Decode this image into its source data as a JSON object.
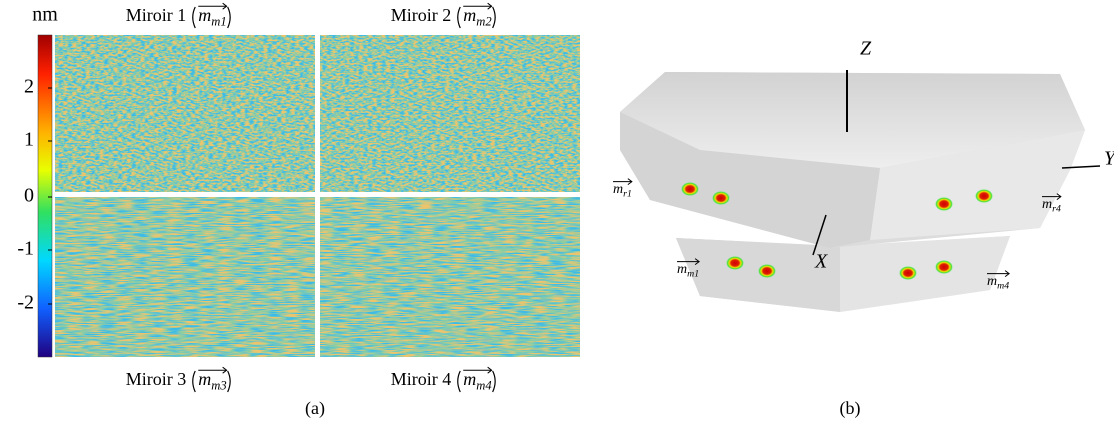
{
  "panel_a": {
    "unit": "nm",
    "colorbar_ticks": [
      "2",
      "1",
      "0",
      "-1",
      "-2"
    ],
    "mirrors": [
      {
        "name": "Miroir 1",
        "vector": "m",
        "subscript": "m1"
      },
      {
        "name": "Miroir 2",
        "vector": "m",
        "subscript": "m2"
      },
      {
        "name": "Miroir 3",
        "vector": "m",
        "subscript": "m3"
      },
      {
        "name": "Miroir 4",
        "vector": "m",
        "subscript": "m4"
      }
    ],
    "caption": "(a)"
  },
  "panel_b": {
    "axes": {
      "z": "Z",
      "x": "X",
      "y": "Y"
    },
    "labels": [
      {
        "vector": "m",
        "subscript": "r1"
      },
      {
        "vector": "m",
        "subscript": "r4"
      },
      {
        "vector": "m",
        "subscript": "m1"
      },
      {
        "vector": "m",
        "subscript": "m4"
      }
    ],
    "caption": "(b)"
  }
}
